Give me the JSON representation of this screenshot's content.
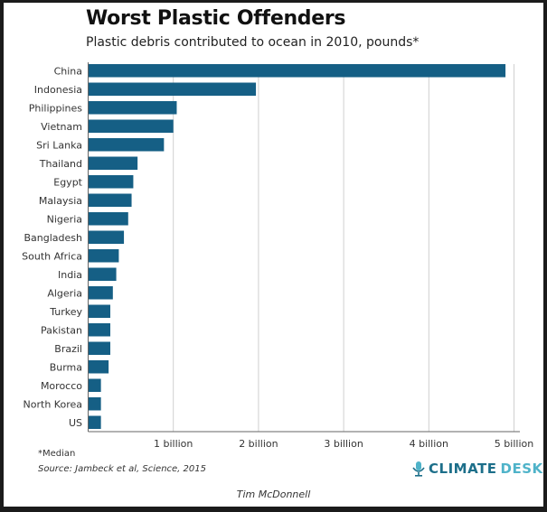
{
  "chart_data": {
    "type": "bar",
    "orientation": "horizontal",
    "title": "Worst Plastic Offenders",
    "subtitle": "Plastic debris contributed to ocean in 2010, pounds*",
    "categories": [
      "China",
      "Indonesia",
      "Philippines",
      "Vietnam",
      "Sri Lanka",
      "Thailand",
      "Egypt",
      "Malaysia",
      "Nigeria",
      "Bangladesh",
      "South Africa",
      "India",
      "Algeria",
      "Turkey",
      "Pakistan",
      "Brazil",
      "Burma",
      "Morocco",
      "North Korea",
      "US"
    ],
    "values": [
      4.9,
      1.97,
      1.04,
      1.0,
      0.89,
      0.58,
      0.53,
      0.51,
      0.47,
      0.42,
      0.36,
      0.33,
      0.29,
      0.26,
      0.26,
      0.26,
      0.24,
      0.15,
      0.15,
      0.15
    ],
    "units": "billion pounds",
    "xlim": [
      0,
      5
    ],
    "xticks": [
      1,
      2,
      3,
      4,
      5
    ],
    "xtick_labels": [
      "1 billion",
      "2 billion",
      "3 billion",
      "4 billion",
      "5 billion"
    ],
    "grid": true,
    "bar_color": "#155f85"
  },
  "footnote": "*Median",
  "source": "Source: Jambeck et al, Science, 2015",
  "author": "Tim McDonnell",
  "logo": {
    "part1": "CLIMATE",
    "part2": "DESK"
  }
}
